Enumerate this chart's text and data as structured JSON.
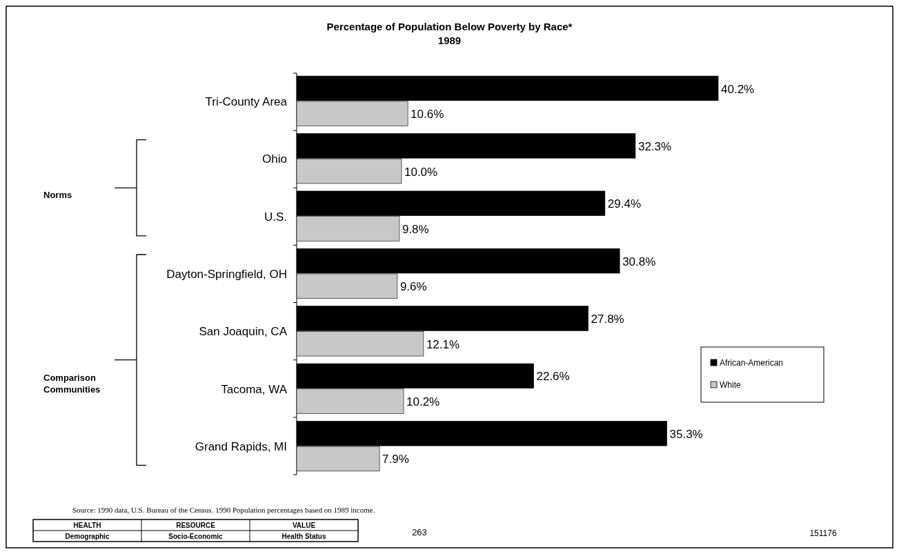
{
  "chart_data": {
    "type": "bar",
    "orientation": "horizontal",
    "title": "Percentage of Population Below Poverty by Race*",
    "subtitle": "1989",
    "categories": [
      "Tri-County Area",
      "Ohio",
      "U.S.",
      "Dayton-Springfield, OH",
      "San Joaquin, CA",
      "Tacoma, WA",
      "Grand Rapids, MI"
    ],
    "series": [
      {
        "name": "African-American",
        "color": "#000000",
        "values": [
          40.2,
          32.3,
          29.4,
          30.8,
          27.8,
          22.6,
          35.3
        ],
        "value_labels": [
          "40.2%",
          "32.3%",
          "29.4%",
          "30.8%",
          "27.8%",
          "22.6%",
          "35.3%"
        ]
      },
      {
        "name": "White",
        "color": "#c8c8c8",
        "values": [
          10.6,
          10.0,
          9.8,
          9.6,
          12.1,
          10.2,
          7.9
        ],
        "value_labels": [
          "10.6%",
          "10.0%",
          "9.8%",
          "9.6%",
          "12.1%",
          "10.2%",
          "7.9%"
        ]
      }
    ],
    "legend": "right",
    "annotations": [
      "Norms",
      "Comparison Communities",
      "Source: 1990 data, U.S. Bureau of the Census. 1990 Population percentages based on 1989 income.",
      "HEALTH",
      "RESOURCE",
      "VALUE",
      "Demographic",
      "Socio-Economic",
      "Health Status",
      "263",
      "151176"
    ]
  }
}
